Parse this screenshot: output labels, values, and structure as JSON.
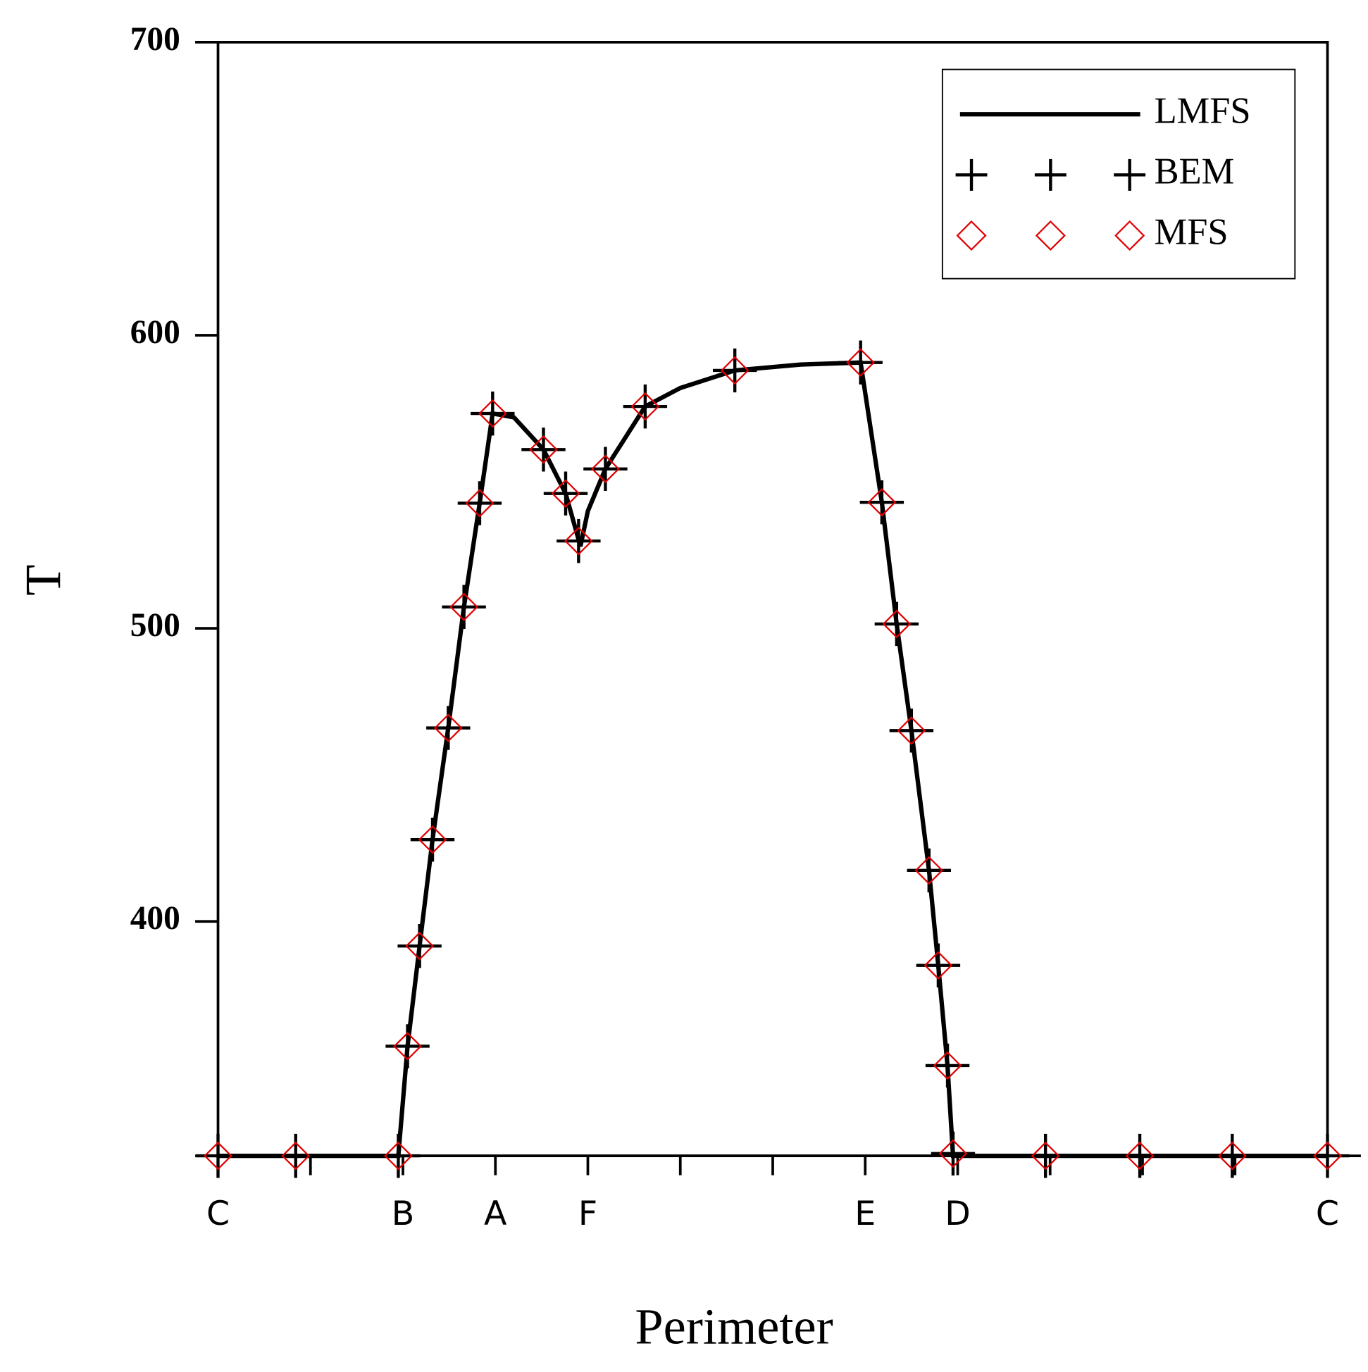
{
  "chart_data": {
    "type": "line",
    "xlabel": "Perimeter",
    "ylabel": "T",
    "xlim": [
      0,
      12
    ],
    "ylim": [
      320,
      700
    ],
    "xticks": [
      {
        "value": 0,
        "label": "C"
      },
      {
        "value": 2,
        "label": "B"
      },
      {
        "value": 3,
        "label": "A"
      },
      {
        "value": 4,
        "label": "F"
      },
      {
        "value": 7,
        "label": "E"
      },
      {
        "value": 8,
        "label": "D"
      },
      {
        "value": 12,
        "label": "C"
      }
    ],
    "xminorticks": [
      1,
      5,
      6,
      9,
      10,
      11
    ],
    "yticks": [
      400,
      500,
      600,
      700
    ],
    "legend": "upper right",
    "series": [
      {
        "name": "LMFS",
        "style": "line",
        "color": "#000000",
        "x": [
          0,
          1.95,
          2.05,
          2.18,
          2.32,
          2.49,
          2.66,
          2.83,
          2.97,
          3.2,
          3.52,
          3.76,
          3.92,
          4.0,
          4.19,
          4.62,
          5.0,
          5.59,
          6.3,
          6.95,
          7.18,
          7.34,
          7.5,
          7.69,
          7.79,
          7.89,
          7.95,
          12
        ],
        "values": [
          320,
          320,
          357.4,
          391.6,
          427.9,
          466,
          507.3,
          542.7,
          573.3,
          572,
          561,
          546,
          528,
          540,
          554.4,
          575.7,
          582,
          588,
          590,
          590.7,
          543,
          501.5,
          465.1,
          417.4,
          385,
          350.8,
          320,
          320
        ]
      },
      {
        "name": "BEM",
        "style": "plus",
        "color": "#000000",
        "x": [
          0,
          0.84,
          1.95,
          2.05,
          2.18,
          2.32,
          2.49,
          2.66,
          2.83,
          2.97,
          3.52,
          3.76,
          3.9,
          4.19,
          4.62,
          5.59,
          6.95,
          7.18,
          7.34,
          7.5,
          7.69,
          7.79,
          7.89,
          7.95,
          8.95,
          9.97,
          10.97,
          12
        ],
        "values": [
          320,
          320,
          320,
          357.4,
          391.6,
          427.9,
          466,
          507.3,
          542.7,
          573.3,
          561,
          546,
          529.8,
          554.4,
          575.7,
          588,
          590.7,
          543,
          501.5,
          465.1,
          417.4,
          385,
          350.8,
          320.8,
          320,
          320,
          320,
          320
        ]
      },
      {
        "name": "MFS",
        "style": "diamond",
        "color": "#e00000",
        "x": [
          0,
          0.84,
          1.95,
          2.05,
          2.18,
          2.32,
          2.49,
          2.66,
          2.83,
          2.97,
          3.52,
          3.76,
          3.9,
          4.19,
          4.62,
          5.59,
          6.95,
          7.18,
          7.34,
          7.5,
          7.69,
          7.79,
          7.89,
          7.95,
          8.95,
          9.97,
          10.97,
          12
        ],
        "values": [
          320,
          320,
          320,
          357.4,
          391.6,
          427.9,
          466,
          507.3,
          542.7,
          573.3,
          561,
          546,
          529.8,
          554.4,
          575.7,
          588,
          590.7,
          543,
          501.5,
          465.1,
          417.4,
          385,
          350.8,
          320.8,
          320,
          320,
          320,
          320
        ]
      }
    ]
  }
}
